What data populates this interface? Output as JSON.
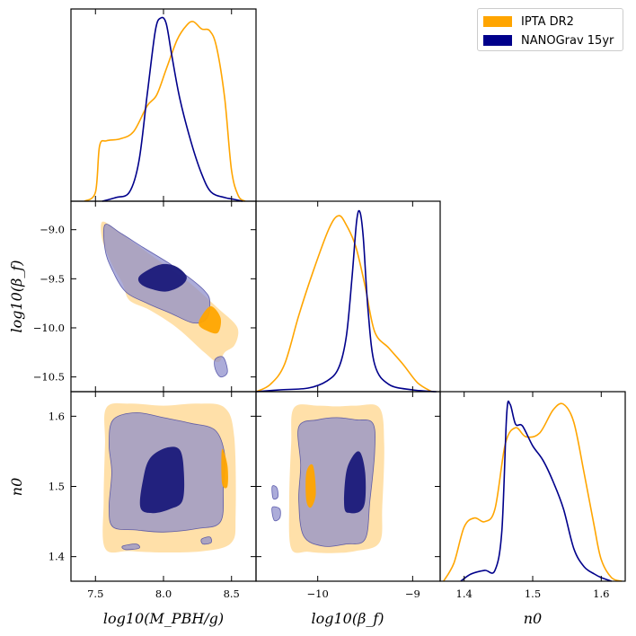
{
  "colors": {
    "ipta": "#FFA500",
    "nanograv": "#00008B"
  },
  "legend": {
    "items": [
      {
        "label": "IPTA DR2",
        "color": "#FFA500"
      },
      {
        "label": "NANOGrav 15yr",
        "color": "#00008B"
      }
    ]
  },
  "axis_labels": {
    "mpbh": "log10(M_PBH/g)",
    "beta": "log10(β_f)",
    "n0": "n0"
  },
  "chart_data": {
    "type": "corner",
    "parameters": [
      "log10(M_PBH/g)",
      "log10(β_f)",
      "n0"
    ],
    "ranges": {
      "mpbh": [
        7.32,
        8.68
      ],
      "beta": [
        -10.65,
        -8.71
      ],
      "n0": [
        1.365,
        1.635
      ]
    },
    "ticks": {
      "mpbh": [
        {
          "v": 7.5,
          "label": "7.5"
        },
        {
          "v": 8.0,
          "label": "8.0"
        },
        {
          "v": 8.5,
          "label": "8.5"
        }
      ],
      "beta_x": [
        {
          "v": -10,
          "label": "−10"
        },
        {
          "v": -9,
          "label": "−9"
        }
      ],
      "beta_y": [
        {
          "v": -9.0,
          "label": "−9.0"
        },
        {
          "v": -9.5,
          "label": "−9.5"
        },
        {
          "v": -10.0,
          "label": "−10.0"
        },
        {
          "v": -10.5,
          "label": "−10.5"
        }
      ],
      "n0": [
        {
          "v": 1.4,
          "label": "1.4"
        },
        {
          "v": 1.5,
          "label": "1.5"
        },
        {
          "v": 1.6,
          "label": "1.6"
        }
      ]
    },
    "marginals": {
      "mpbh": {
        "ipta": [
          [
            7.42,
            0
          ],
          [
            7.5,
            0.05
          ],
          [
            7.53,
            0.3
          ],
          [
            7.58,
            0.33
          ],
          [
            7.68,
            0.34
          ],
          [
            7.78,
            0.38
          ],
          [
            7.88,
            0.52
          ],
          [
            7.95,
            0.58
          ],
          [
            8.02,
            0.72
          ],
          [
            8.1,
            0.88
          ],
          [
            8.17,
            0.96
          ],
          [
            8.22,
            0.98
          ],
          [
            8.28,
            0.94
          ],
          [
            8.34,
            0.93
          ],
          [
            8.39,
            0.84
          ],
          [
            8.45,
            0.56
          ],
          [
            8.5,
            0.17
          ],
          [
            8.55,
            0.03
          ],
          [
            8.6,
            0
          ]
        ],
        "nanograv": [
          [
            7.55,
            0
          ],
          [
            7.65,
            0.02
          ],
          [
            7.75,
            0.05
          ],
          [
            7.82,
            0.22
          ],
          [
            7.88,
            0.58
          ],
          [
            7.94,
            0.93
          ],
          [
            7.98,
            1.0
          ],
          [
            8.02,
            0.97
          ],
          [
            8.06,
            0.8
          ],
          [
            8.12,
            0.56
          ],
          [
            8.2,
            0.33
          ],
          [
            8.28,
            0.15
          ],
          [
            8.35,
            0.05
          ],
          [
            8.45,
            0.02
          ],
          [
            8.52,
            0.01
          ],
          [
            8.58,
            0
          ]
        ]
      },
      "beta": {
        "ipta": [
          [
            -10.65,
            0
          ],
          [
            -10.5,
            0.04
          ],
          [
            -10.35,
            0.15
          ],
          [
            -10.2,
            0.42
          ],
          [
            -10.05,
            0.66
          ],
          [
            -9.88,
            0.9
          ],
          [
            -9.78,
            0.97
          ],
          [
            -9.7,
            0.92
          ],
          [
            -9.6,
            0.8
          ],
          [
            -9.5,
            0.58
          ],
          [
            -9.4,
            0.33
          ],
          [
            -9.25,
            0.24
          ],
          [
            -9.1,
            0.15
          ],
          [
            -8.95,
            0.05
          ],
          [
            -8.8,
            0
          ]
        ],
        "nanograv": [
          [
            -10.65,
            0
          ],
          [
            -10.4,
            0.01
          ],
          [
            -10.1,
            0.02
          ],
          [
            -9.9,
            0.06
          ],
          [
            -9.78,
            0.13
          ],
          [
            -9.7,
            0.3
          ],
          [
            -9.64,
            0.62
          ],
          [
            -9.59,
            0.94
          ],
          [
            -9.555,
            0.99
          ],
          [
            -9.52,
            0.85
          ],
          [
            -9.47,
            0.45
          ],
          [
            -9.4,
            0.15
          ],
          [
            -9.25,
            0.04
          ],
          [
            -9.0,
            0.01
          ],
          [
            -8.75,
            0
          ]
        ]
      },
      "n0": {
        "ipta": [
          [
            1.37,
            0
          ],
          [
            1.385,
            0.1
          ],
          [
            1.4,
            0.3
          ],
          [
            1.415,
            0.35
          ],
          [
            1.43,
            0.33
          ],
          [
            1.445,
            0.4
          ],
          [
            1.46,
            0.76
          ],
          [
            1.475,
            0.85
          ],
          [
            1.49,
            0.8
          ],
          [
            1.51,
            0.82
          ],
          [
            1.53,
            0.95
          ],
          [
            1.545,
            0.98
          ],
          [
            1.56,
            0.88
          ],
          [
            1.575,
            0.6
          ],
          [
            1.59,
            0.3
          ],
          [
            1.6,
            0.12
          ],
          [
            1.615,
            0.02
          ],
          [
            1.63,
            0
          ]
        ],
        "nanograv": [
          [
            1.395,
            0
          ],
          [
            1.41,
            0.04
          ],
          [
            1.43,
            0.06
          ],
          [
            1.445,
            0.06
          ],
          [
            1.455,
            0.28
          ],
          [
            1.462,
            0.92
          ],
          [
            1.467,
            0.98
          ],
          [
            1.475,
            0.87
          ],
          [
            1.485,
            0.86
          ],
          [
            1.5,
            0.75
          ],
          [
            1.515,
            0.67
          ],
          [
            1.53,
            0.55
          ],
          [
            1.545,
            0.4
          ],
          [
            1.56,
            0.18
          ],
          [
            1.575,
            0.08
          ],
          [
            1.59,
            0.04
          ],
          [
            1.6,
            0.02
          ],
          [
            1.615,
            0
          ]
        ]
      }
    },
    "contours": {
      "mpbh_beta": {
        "ipta_outer": [
          [
            7.55,
            -8.92
          ],
          [
            7.65,
            -9.0
          ],
          [
            7.8,
            -9.15
          ],
          [
            8.0,
            -9.35
          ],
          [
            8.2,
            -9.55
          ],
          [
            8.4,
            -9.8
          ],
          [
            8.52,
            -9.95
          ],
          [
            8.55,
            -10.05
          ],
          [
            8.52,
            -10.18
          ],
          [
            8.45,
            -10.25
          ],
          [
            8.4,
            -10.35
          ],
          [
            8.3,
            -10.25
          ],
          [
            8.1,
            -10.0
          ],
          [
            7.9,
            -9.82
          ],
          [
            7.75,
            -9.72
          ],
          [
            7.7,
            -9.55
          ],
          [
            7.62,
            -9.35
          ],
          [
            7.55,
            -9.1
          ]
        ],
        "ipta_inner": [
          [
            8.28,
            -9.88
          ],
          [
            8.35,
            -9.78
          ],
          [
            8.42,
            -9.9
          ],
          [
            8.4,
            -10.05
          ],
          [
            8.32,
            -10.03
          ],
          [
            8.26,
            -9.97
          ]
        ],
        "nanograv_outer": [
          [
            7.57,
            -8.95
          ],
          [
            7.68,
            -9.03
          ],
          [
            7.85,
            -9.18
          ],
          [
            8.05,
            -9.35
          ],
          [
            8.2,
            -9.5
          ],
          [
            8.3,
            -9.62
          ],
          [
            8.34,
            -9.72
          ],
          [
            8.32,
            -9.9
          ],
          [
            8.22,
            -9.95
          ],
          [
            8.05,
            -9.85
          ],
          [
            7.88,
            -9.75
          ],
          [
            7.72,
            -9.63
          ],
          [
            7.62,
            -9.4
          ],
          [
            7.57,
            -9.2
          ]
        ],
        "nanograv_outer2": [
          [
            8.38,
            -10.32
          ],
          [
            8.44,
            -10.3
          ],
          [
            8.47,
            -10.45
          ],
          [
            8.42,
            -10.5
          ],
          [
            8.38,
            -10.42
          ]
        ],
        "nanograv_inner": [
          [
            7.82,
            -9.48
          ],
          [
            7.9,
            -9.4
          ],
          [
            8.0,
            -9.35
          ],
          [
            8.1,
            -9.38
          ],
          [
            8.17,
            -9.48
          ],
          [
            8.13,
            -9.57
          ],
          [
            8.02,
            -9.63
          ],
          [
            7.9,
            -9.6
          ],
          [
            7.83,
            -9.55
          ]
        ]
      },
      "mpbh_n0": {
        "ipta_outer": [
          [
            7.58,
            1.612
          ],
          [
            7.75,
            1.618
          ],
          [
            8.0,
            1.615
          ],
          [
            8.25,
            1.618
          ],
          [
            8.45,
            1.612
          ],
          [
            8.52,
            1.57
          ],
          [
            8.53,
            1.46
          ],
          [
            8.5,
            1.42
          ],
          [
            8.3,
            1.408
          ],
          [
            8.0,
            1.406
          ],
          [
            7.75,
            1.408
          ],
          [
            7.57,
            1.412
          ],
          [
            7.56,
            1.48
          ],
          [
            7.57,
            1.56
          ]
        ],
        "ipta_inner": [
          [
            8.43,
            1.553
          ],
          [
            8.47,
            1.53
          ],
          [
            8.47,
            1.5
          ],
          [
            8.43,
            1.505
          ]
        ],
        "nanograv_outer": [
          [
            7.63,
            1.595
          ],
          [
            7.8,
            1.605
          ],
          [
            8.0,
            1.598
          ],
          [
            8.2,
            1.59
          ],
          [
            8.38,
            1.58
          ],
          [
            8.45,
            1.545
          ],
          [
            8.44,
            1.5
          ],
          [
            8.42,
            1.45
          ],
          [
            8.25,
            1.44
          ],
          [
            8.0,
            1.435
          ],
          [
            7.8,
            1.438
          ],
          [
            7.63,
            1.442
          ],
          [
            7.6,
            1.47
          ],
          [
            7.62,
            1.52
          ],
          [
            7.6,
            1.56
          ]
        ],
        "nanograv_outer2": [
          [
            7.7,
            1.415
          ],
          [
            7.8,
            1.418
          ],
          [
            7.82,
            1.412
          ],
          [
            7.72,
            1.41
          ]
        ],
        "nanograv_outer3": [
          [
            8.28,
            1.425
          ],
          [
            8.34,
            1.428
          ],
          [
            8.35,
            1.42
          ],
          [
            8.29,
            1.418
          ]
        ],
        "nanograv_inner": [
          [
            7.83,
            1.47
          ],
          [
            7.85,
            1.51
          ],
          [
            7.9,
            1.54
          ],
          [
            8.02,
            1.555
          ],
          [
            8.12,
            1.552
          ],
          [
            8.15,
            1.52
          ],
          [
            8.14,
            1.48
          ],
          [
            8.05,
            1.468
          ],
          [
            7.92,
            1.462
          ]
        ]
      },
      "beta_n0": {
        "ipta_outer": [
          [
            -10.25,
            1.612
          ],
          [
            -10.0,
            1.615
          ],
          [
            -9.8,
            1.614
          ],
          [
            -9.6,
            1.615
          ],
          [
            -9.35,
            1.612
          ],
          [
            -9.3,
            1.56
          ],
          [
            -9.32,
            1.47
          ],
          [
            -9.35,
            1.42
          ],
          [
            -9.6,
            1.408
          ],
          [
            -9.85,
            1.405
          ],
          [
            -10.1,
            1.407
          ],
          [
            -10.28,
            1.412
          ],
          [
            -10.3,
            1.48
          ],
          [
            -10.28,
            1.56
          ]
        ],
        "ipta_inner": [
          [
            -10.12,
            1.52
          ],
          [
            -10.05,
            1.53
          ],
          [
            -10.02,
            1.49
          ],
          [
            -10.07,
            1.47
          ],
          [
            -10.12,
            1.48
          ]
        ],
        "nanograv_outer": [
          [
            -10.2,
            1.585
          ],
          [
            -10.0,
            1.595
          ],
          [
            -9.8,
            1.598
          ],
          [
            -9.6,
            1.595
          ],
          [
            -9.42,
            1.59
          ],
          [
            -9.4,
            1.55
          ],
          [
            -9.45,
            1.48
          ],
          [
            -9.5,
            1.425
          ],
          [
            -9.7,
            1.418
          ],
          [
            -9.95,
            1.415
          ],
          [
            -10.15,
            1.43
          ],
          [
            -10.2,
            1.48
          ],
          [
            -10.18,
            1.53
          ]
        ],
        "nanograv_outer2": [
          [
            -10.48,
            1.5
          ],
          [
            -10.43,
            1.498
          ],
          [
            -10.42,
            1.485
          ],
          [
            -10.47,
            1.483
          ]
        ],
        "nanograv_outer3": [
          [
            -10.48,
            1.47
          ],
          [
            -10.4,
            1.468
          ],
          [
            -10.4,
            1.455
          ],
          [
            -10.46,
            1.452
          ]
        ],
        "nanograv_inner": [
          [
            -9.72,
            1.47
          ],
          [
            -9.7,
            1.52
          ],
          [
            -9.62,
            1.545
          ],
          [
            -9.55,
            1.548
          ],
          [
            -9.5,
            1.52
          ],
          [
            -9.5,
            1.48
          ],
          [
            -9.55,
            1.465
          ],
          [
            -9.65,
            1.462
          ]
        ]
      }
    }
  }
}
